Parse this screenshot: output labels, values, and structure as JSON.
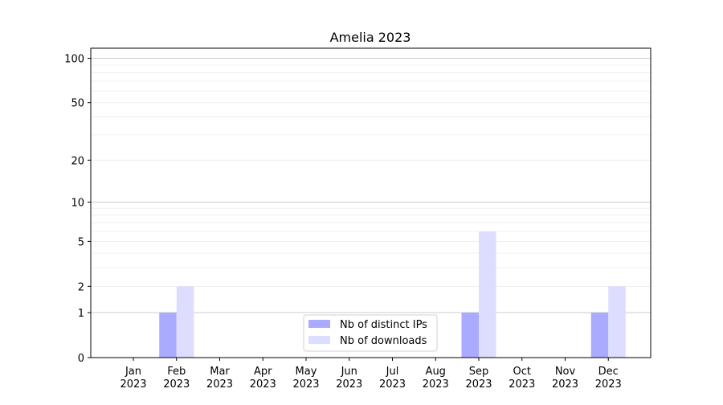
{
  "chart_data": {
    "type": "bar",
    "title": "Amelia 2023",
    "xlabel": "",
    "ylabel": "",
    "yscale": "log(1+y)",
    "ylim": [
      0,
      117
    ],
    "grid": true,
    "legend_placement": "lower-center",
    "categories": [
      "Jan\n2023",
      "Feb\n2023",
      "Mar\n2023",
      "Apr\n2023",
      "May\n2023",
      "Jun\n2023",
      "Jul\n2023",
      "Aug\n2023",
      "Sep\n2023",
      "Oct\n2023",
      "Nov\n2023",
      "Dec\n2023"
    ],
    "category_labels": [
      [
        "Jan",
        "2023"
      ],
      [
        "Feb",
        "2023"
      ],
      [
        "Mar",
        "2023"
      ],
      [
        "Apr",
        "2023"
      ],
      [
        "May",
        "2023"
      ],
      [
        "Jun",
        "2023"
      ],
      [
        "Jul",
        "2023"
      ],
      [
        "Aug",
        "2023"
      ],
      [
        "Sep",
        "2023"
      ],
      [
        "Oct",
        "2023"
      ],
      [
        "Nov",
        "2023"
      ],
      [
        "Dec",
        "2023"
      ]
    ],
    "yticks": [
      0,
      1,
      2,
      5,
      10,
      20,
      50,
      100
    ],
    "ytick_labels": [
      "0",
      "1",
      "2",
      "5",
      "10",
      "20",
      "50",
      "100"
    ],
    "series": [
      {
        "name": "Nb of distinct IPs",
        "color": "#aaaaff",
        "values": [
          0,
          1,
          0,
          0,
          0,
          0,
          0,
          0,
          1,
          0,
          0,
          1
        ]
      },
      {
        "name": "Nb of downloads",
        "color": "#ddddff",
        "values": [
          0,
          2,
          0,
          0,
          0,
          0,
          0,
          0,
          6,
          0,
          0,
          2
        ]
      }
    ]
  }
}
